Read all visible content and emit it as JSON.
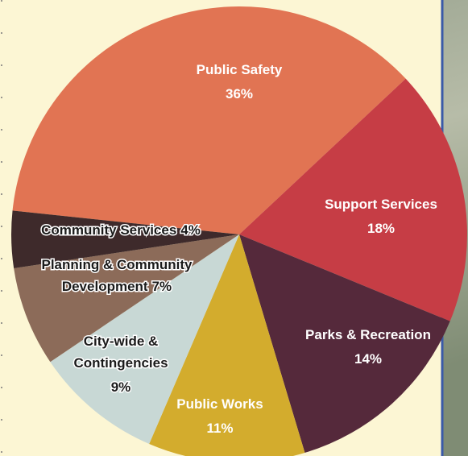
{
  "chart_data": {
    "type": "pie",
    "categories": [
      [
        "Public Safety"
      ],
      [
        "Support Services"
      ],
      [
        "Parks & Recreation"
      ],
      [
        "Public Works"
      ],
      [
        "City-wide &",
        "Contingencies"
      ],
      [
        "Planning & Community",
        "Development"
      ],
      [
        "Community Services"
      ]
    ],
    "values": [
      36,
      18,
      14,
      11,
      9,
      7,
      4
    ],
    "value_labels": [
      "36%",
      "18%",
      "14%",
      "11%",
      "9%",
      "7%",
      "4%"
    ],
    "colors": [
      "#e17453",
      "#c63d45",
      "#55293b",
      "#d3ac2d",
      "#c8d8d5",
      "#8c6b59",
      "#3e2a2b"
    ]
  }
}
